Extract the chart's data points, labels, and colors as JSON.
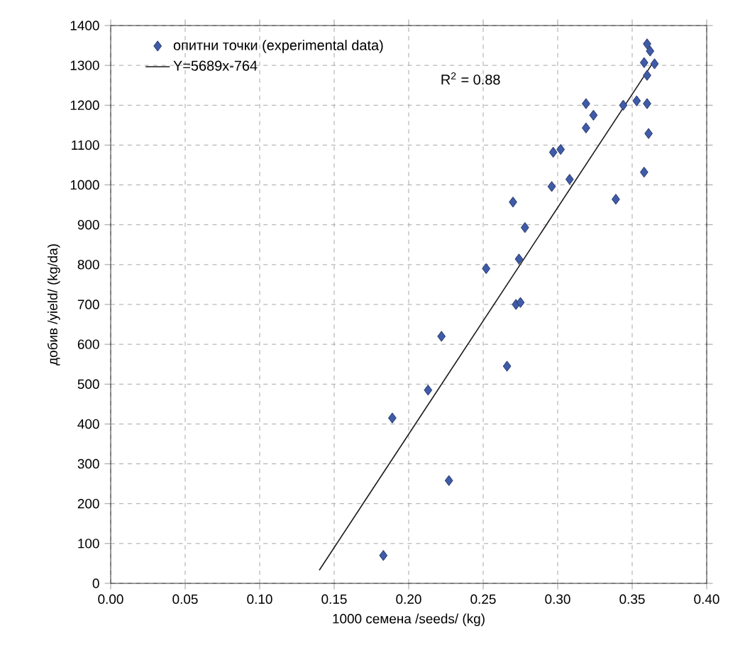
{
  "chart_data": {
    "type": "scatter",
    "xlabel": "1000 семена /seeds/ (kg)",
    "ylabel": "добив /yield/ (kg/da)",
    "xlim": [
      0,
      0.4
    ],
    "ylim": [
      0,
      1400
    ],
    "xticks": [
      {
        "value": 0,
        "label": "0.00"
      },
      {
        "value": 0.05,
        "label": "0.05"
      },
      {
        "value": 0.1,
        "label": "0.10"
      },
      {
        "value": 0.15,
        "label": "0.15"
      },
      {
        "value": 0.2,
        "label": "0.20"
      },
      {
        "value": 0.25,
        "label": "0.25"
      },
      {
        "value": 0.3,
        "label": "0.30"
      },
      {
        "value": 0.35,
        "label": "0.35"
      },
      {
        "value": 0.4,
        "label": "0.40"
      }
    ],
    "yticks": [
      0,
      100,
      200,
      300,
      400,
      500,
      600,
      700,
      800,
      900,
      1000,
      1100,
      1200,
      1300,
      1400
    ],
    "grid": true,
    "legend": "top left",
    "annotations": [
      "R$^{2}$ = 0.88"
    ],
    "series": [
      {
        "name": "опитни точки (experimental data)",
        "marker": "diamond",
        "color": "#3f5ba9",
        "x": [
          0.183,
          0.189,
          0.213,
          0.227,
          0.222,
          0.266,
          0.252,
          0.272,
          0.275,
          0.274,
          0.278,
          0.27,
          0.296,
          0.308,
          0.339,
          0.358,
          0.297,
          0.302,
          0.319,
          0.324,
          0.319,
          0.344,
          0.353,
          0.361,
          0.36,
          0.36,
          0.358,
          0.365,
          0.362,
          0.36
        ],
        "values": [
          70,
          415,
          485,
          258,
          620,
          545,
          790,
          700,
          705,
          814,
          893,
          957,
          996,
          1014,
          964,
          1032,
          1082,
          1089,
          1143,
          1175,
          1204,
          1200,
          1211,
          1129,
          1204,
          1275,
          1307,
          1304,
          1336,
          1354
        ]
      },
      {
        "name": "Y=5689x-764",
        "type": "line",
        "marker": "none",
        "line_style": "solid",
        "color": "#1a1a1a",
        "x": [
          0.14,
          0.365
        ],
        "values": [
          33,
          1313
        ]
      }
    ]
  }
}
